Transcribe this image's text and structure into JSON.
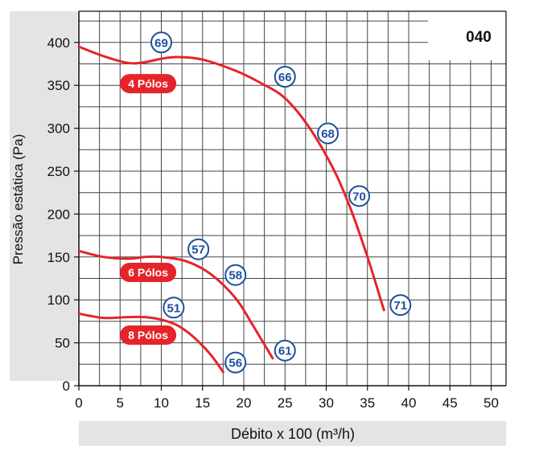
{
  "chart_data": {
    "type": "line",
    "title": "040",
    "xlabel": "Débito x 100 (m³/h)",
    "ylabel": "Pressão estática  (Pa)",
    "xlim": [
      0,
      53
    ],
    "ylim": [
      0,
      435
    ],
    "xticks": [
      0,
      5,
      10,
      15,
      20,
      25,
      30,
      35,
      40,
      45,
      50
    ],
    "yticks": [
      0,
      50,
      100,
      150,
      200,
      250,
      300,
      350,
      400
    ],
    "grid": true,
    "series_color": "#e5242a",
    "marker_color": "#1e4f9c",
    "series": [
      {
        "name": "4 Pólos",
        "x": [
          0,
          3,
          6,
          8,
          10,
          12,
          15,
          19,
          22,
          25,
          28,
          31,
          33,
          35,
          37
        ],
        "y": [
          395,
          384,
          376,
          377,
          381,
          383,
          380,
          367,
          353,
          335,
          300,
          250,
          205,
          150,
          88
        ],
        "points": [
          {
            "label": "69",
            "x": 10,
            "y": 400
          },
          {
            "label": "66",
            "x": 25,
            "y": 360
          },
          {
            "label": "68",
            "x": 30.2,
            "y": 294
          },
          {
            "label": "70",
            "x": 34,
            "y": 221
          },
          {
            "label": "71",
            "x": 39,
            "y": 94
          }
        ]
      },
      {
        "name": "6 Pólos",
        "x": [
          0,
          3,
          6,
          8,
          10,
          13,
          16,
          19,
          21,
          23.5
        ],
        "y": [
          157,
          150,
          148,
          150,
          150,
          145,
          130,
          102,
          72,
          32
        ],
        "points": [
          {
            "label": "57",
            "x": 14.5,
            "y": 159
          },
          {
            "label": "58",
            "x": 19,
            "y": 129
          }
        ]
      },
      {
        "name": "8 Pólos",
        "x": [
          0,
          3,
          6,
          8,
          10,
          12,
          14,
          16,
          17.5
        ],
        "y": [
          84,
          79,
          80,
          80,
          77,
          70,
          56,
          36,
          16
        ],
        "points": [
          {
            "label": "51",
            "x": 11.5,
            "y": 91
          },
          {
            "label": "61",
            "x": 25,
            "y": 41
          },
          {
            "label": "56",
            "x": 19,
            "y": 27
          }
        ]
      }
    ]
  }
}
